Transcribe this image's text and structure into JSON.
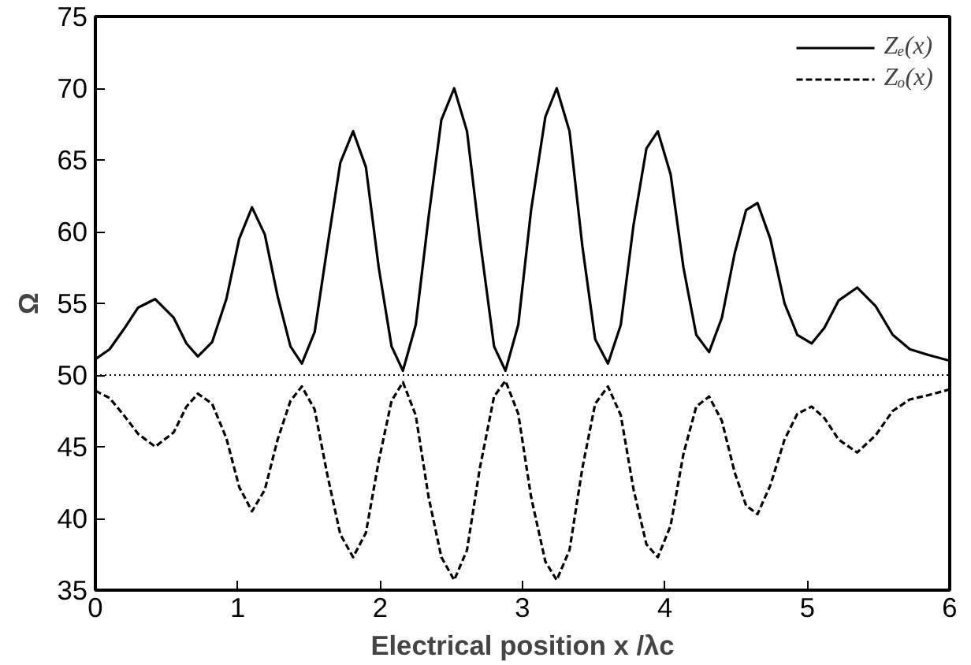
{
  "chart_data": {
    "type": "line",
    "xlabel": "Electrical position x /λc",
    "ylabel": "Ω",
    "xlim": [
      0,
      6
    ],
    "ylim": [
      35,
      75
    ],
    "xticks": [
      0,
      1,
      2,
      3,
      4,
      5,
      6
    ],
    "yticks": [
      35,
      40,
      45,
      50,
      55,
      60,
      65,
      70,
      75
    ],
    "grid": false,
    "legend": "top right",
    "marker": "none",
    "x": [
      0,
      0.1,
      0.2,
      0.3,
      0.42,
      0.55,
      0.64,
      0.72,
      0.82,
      0.92,
      1.01,
      1.1,
      1.19,
      1.28,
      1.37,
      1.45,
      1.54,
      1.63,
      1.72,
      1.81,
      1.9,
      1.99,
      2.08,
      2.16,
      2.25,
      2.34,
      2.43,
      2.52,
      2.61,
      2.7,
      2.8,
      2.88,
      2.97,
      3.06,
      3.16,
      3.24,
      3.33,
      3.42,
      3.51,
      3.6,
      3.69,
      3.78,
      3.87,
      3.95,
      4.04,
      4.13,
      4.22,
      4.31,
      4.4,
      4.49,
      4.57,
      4.65,
      4.74,
      4.84,
      4.93,
      5.03,
      5.12,
      5.22,
      5.35,
      5.48,
      5.6,
      5.72,
      5.85,
      6
    ],
    "series": [
      {
        "name": "Zₑ(x)",
        "color": "#000000",
        "line_style": "solid",
        "values": [
          51.1,
          51.8,
          53.2,
          54.7,
          55.3,
          54.0,
          52.2,
          51.3,
          52.3,
          55.3,
          59.5,
          61.7,
          59.8,
          55.5,
          52.0,
          50.8,
          53.0,
          59.0,
          64.8,
          67.0,
          64.5,
          57.5,
          52.0,
          50.3,
          53.5,
          61.0,
          67.8,
          70.0,
          67.0,
          59.5,
          52.0,
          50.3,
          53.5,
          61.5,
          68.0,
          70.0,
          67.0,
          59.0,
          52.5,
          50.8,
          53.5,
          60.5,
          65.8,
          67.0,
          64.0,
          57.5,
          52.8,
          51.6,
          54.0,
          58.5,
          61.5,
          62.0,
          59.5,
          55.0,
          52.8,
          52.2,
          53.3,
          55.2,
          56.1,
          54.8,
          52.8,
          51.8,
          51.4,
          51.0
        ]
      },
      {
        "name": "Zₒ(x)",
        "color": "#000000",
        "line_style": "dashed",
        "values": [
          48.9,
          48.4,
          47.2,
          45.9,
          45.0,
          46.0,
          47.8,
          48.7,
          48.0,
          45.6,
          42.2,
          40.5,
          42.0,
          45.5,
          48.2,
          49.2,
          47.6,
          43.0,
          38.9,
          37.3,
          39.0,
          44.0,
          48.2,
          49.5,
          47.2,
          41.5,
          37.3,
          35.7,
          37.8,
          43.5,
          48.5,
          49.6,
          47.3,
          41.5,
          37.0,
          35.7,
          37.8,
          43.5,
          48.0,
          49.2,
          47.2,
          42.0,
          38.2,
          37.3,
          39.5,
          44.5,
          47.8,
          48.5,
          46.8,
          43.2,
          40.9,
          40.3,
          42.3,
          45.5,
          47.3,
          47.8,
          47.0,
          45.5,
          44.6,
          45.8,
          47.5,
          48.3,
          48.6,
          49.0
        ]
      }
    ],
    "ref_lines": [
      {
        "axis": "y",
        "value": 50,
        "label": null,
        "color": "#000000",
        "line_style": "dotted"
      }
    ]
  }
}
